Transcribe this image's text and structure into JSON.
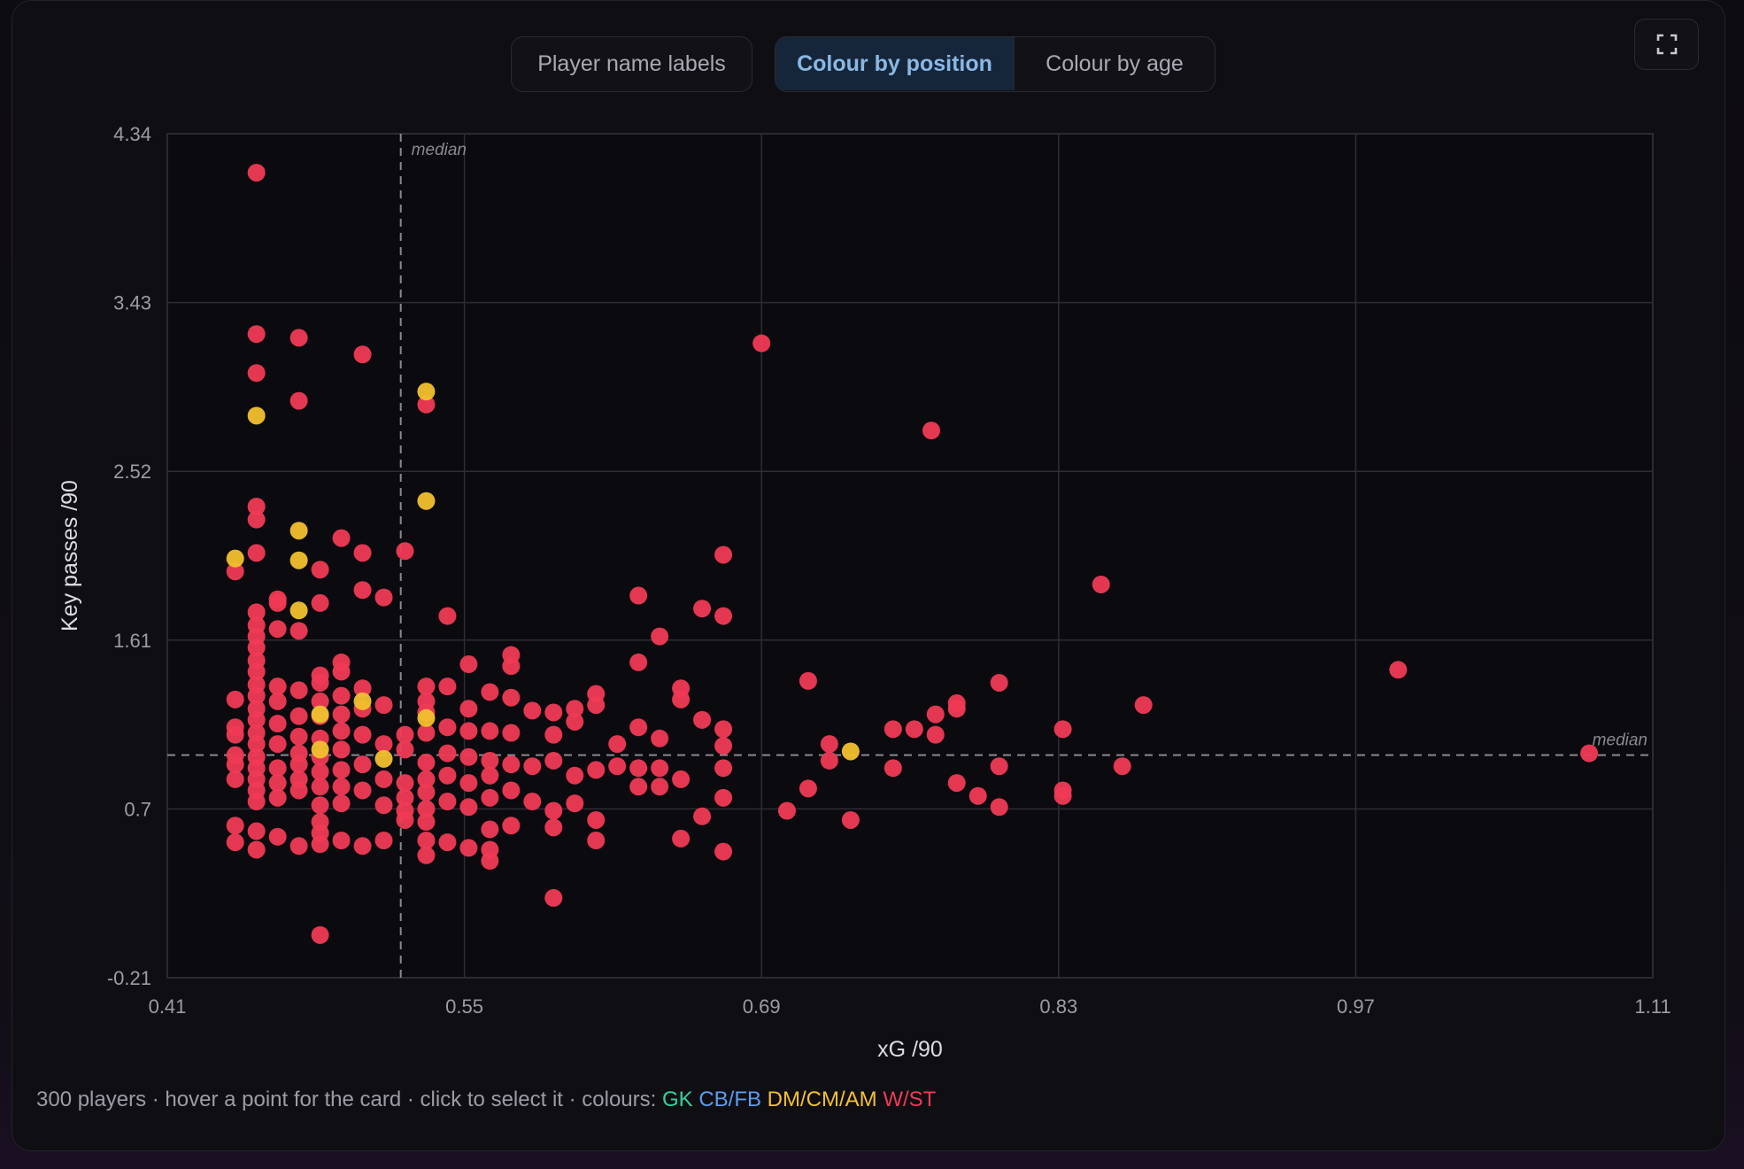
{
  "controls": {
    "labels_button": "Player name labels",
    "colour_by_position": "Colour by position",
    "colour_by_age": "Colour by age",
    "active": "colour_by_position",
    "expand_icon": "expand-icon"
  },
  "footer": {
    "text": "300 players · hover a point for the card · click to select it · colours: ",
    "legend": [
      {
        "label": "GK",
        "color": "#34d399"
      },
      {
        "label": "CB/FB",
        "color": "#5b9cf0"
      },
      {
        "label": "DM/CM/AM",
        "color": "#f2c12e"
      },
      {
        "label": "W/ST",
        "color": "#f03a55"
      }
    ]
  },
  "chart_data": {
    "type": "scatter",
    "xlabel": "xG /90",
    "ylabel": "Key passes /90",
    "xlim": [
      0.41,
      1.11
    ],
    "ylim": [
      -0.21,
      4.34
    ],
    "x_ticks": [
      "0.41",
      "0.55",
      "0.69",
      "0.83",
      "0.97",
      "1.11"
    ],
    "y_ticks": [
      "4.34",
      "3.43",
      "2.52",
      "1.61",
      "0.7",
      "-0.21"
    ],
    "grid": true,
    "median_lines": {
      "x": 0.52,
      "y": 0.99,
      "label": "median"
    },
    "series": [
      {
        "group": "W/ST",
        "color": "#f03a55",
        "points": [
          [
            0.452,
            4.13
          ],
          [
            0.452,
            3.26
          ],
          [
            0.472,
            3.24
          ],
          [
            0.502,
            3.15
          ],
          [
            0.452,
            3.05
          ],
          [
            0.472,
            2.9
          ],
          [
            0.532,
            2.88
          ],
          [
            0.69,
            3.21
          ],
          [
            0.77,
            2.74
          ],
          [
            0.85,
            1.91
          ],
          [
            0.99,
            1.45
          ],
          [
            1.08,
            1.0
          ],
          [
            0.452,
            2.33
          ],
          [
            0.452,
            2.26
          ],
          [
            0.452,
            2.08
          ],
          [
            0.442,
            1.98
          ],
          [
            0.492,
            2.16
          ],
          [
            0.502,
            2.08
          ],
          [
            0.482,
            1.99
          ],
          [
            0.502,
            1.88
          ],
          [
            0.512,
            1.84
          ],
          [
            0.482,
            1.81
          ],
          [
            0.462,
            1.83
          ],
          [
            0.462,
            1.81
          ],
          [
            0.522,
            2.09
          ],
          [
            0.542,
            1.74
          ],
          [
            0.672,
            2.07
          ],
          [
            0.632,
            1.85
          ],
          [
            0.662,
            1.78
          ],
          [
            0.672,
            1.74
          ],
          [
            0.642,
            1.63
          ],
          [
            0.632,
            1.49
          ],
          [
            0.452,
            1.76
          ],
          [
            0.452,
            1.69
          ],
          [
            0.452,
            1.63
          ],
          [
            0.452,
            1.57
          ],
          [
            0.452,
            1.5
          ],
          [
            0.452,
            1.44
          ],
          [
            0.452,
            1.37
          ],
          [
            0.452,
            1.31
          ],
          [
            0.452,
            1.24
          ],
          [
            0.452,
            1.18
          ],
          [
            0.452,
            1.11
          ],
          [
            0.452,
            1.05
          ],
          [
            0.452,
            0.98
          ],
          [
            0.452,
            0.92
          ],
          [
            0.452,
            0.86
          ],
          [
            0.452,
            0.8
          ],
          [
            0.452,
            0.74
          ],
          [
            0.452,
            0.58
          ],
          [
            0.452,
            0.48
          ],
          [
            0.442,
            1.29
          ],
          [
            0.442,
            1.14
          ],
          [
            0.442,
            1.1
          ],
          [
            0.442,
            0.99
          ],
          [
            0.442,
            0.94
          ],
          [
            0.442,
            0.86
          ],
          [
            0.442,
            0.61
          ],
          [
            0.442,
            0.52
          ],
          [
            0.462,
            1.67
          ],
          [
            0.462,
            1.36
          ],
          [
            0.462,
            1.28
          ],
          [
            0.462,
            1.16
          ],
          [
            0.462,
            1.05
          ],
          [
            0.462,
            0.92
          ],
          [
            0.462,
            0.84
          ],
          [
            0.462,
            0.76
          ],
          [
            0.462,
            0.55
          ],
          [
            0.472,
            1.66
          ],
          [
            0.472,
            1.34
          ],
          [
            0.472,
            1.2
          ],
          [
            0.472,
            1.09
          ],
          [
            0.472,
            1.0
          ],
          [
            0.472,
            0.94
          ],
          [
            0.472,
            0.86
          ],
          [
            0.472,
            0.8
          ],
          [
            0.472,
            0.5
          ],
          [
            0.482,
            1.42
          ],
          [
            0.482,
            1.38
          ],
          [
            0.482,
            1.28
          ],
          [
            0.482,
            1.2
          ],
          [
            0.482,
            1.08
          ],
          [
            0.482,
            0.98
          ],
          [
            0.482,
            0.9
          ],
          [
            0.482,
            0.82
          ],
          [
            0.482,
            0.72
          ],
          [
            0.482,
            0.63
          ],
          [
            0.482,
            0.57
          ],
          [
            0.482,
            0.51
          ],
          [
            0.482,
            0.02
          ],
          [
            0.492,
            1.49
          ],
          [
            0.492,
            1.44
          ],
          [
            0.492,
            1.31
          ],
          [
            0.492,
            1.21
          ],
          [
            0.492,
            1.12
          ],
          [
            0.492,
            1.02
          ],
          [
            0.492,
            0.91
          ],
          [
            0.492,
            0.82
          ],
          [
            0.492,
            0.73
          ],
          [
            0.492,
            0.53
          ],
          [
            0.502,
            1.35
          ],
          [
            0.502,
            1.24
          ],
          [
            0.502,
            1.1
          ],
          [
            0.502,
            0.94
          ],
          [
            0.502,
            0.8
          ],
          [
            0.502,
            0.5
          ],
          [
            0.512,
            1.26
          ],
          [
            0.512,
            1.05
          ],
          [
            0.512,
            0.86
          ],
          [
            0.512,
            0.72
          ],
          [
            0.512,
            0.53
          ],
          [
            0.522,
            1.1
          ],
          [
            0.522,
            1.02
          ],
          [
            0.522,
            0.84
          ],
          [
            0.522,
            0.76
          ],
          [
            0.522,
            0.69
          ],
          [
            0.522,
            0.64
          ],
          [
            0.532,
            1.36
          ],
          [
            0.532,
            1.28
          ],
          [
            0.532,
            1.22
          ],
          [
            0.532,
            1.11
          ],
          [
            0.532,
            0.95
          ],
          [
            0.532,
            0.86
          ],
          [
            0.532,
            0.79
          ],
          [
            0.532,
            0.7
          ],
          [
            0.532,
            0.63
          ],
          [
            0.532,
            0.53
          ],
          [
            0.532,
            0.45
          ],
          [
            0.542,
            1.36
          ],
          [
            0.542,
            1.14
          ],
          [
            0.542,
            1.0
          ],
          [
            0.542,
            0.88
          ],
          [
            0.542,
            0.74
          ],
          [
            0.542,
            0.52
          ],
          [
            0.552,
            1.48
          ],
          [
            0.552,
            1.24
          ],
          [
            0.552,
            1.12
          ],
          [
            0.552,
            0.98
          ],
          [
            0.552,
            0.84
          ],
          [
            0.552,
            0.71
          ],
          [
            0.552,
            0.49
          ],
          [
            0.562,
            1.33
          ],
          [
            0.562,
            1.12
          ],
          [
            0.562,
            0.96
          ],
          [
            0.562,
            0.88
          ],
          [
            0.562,
            0.76
          ],
          [
            0.562,
            0.59
          ],
          [
            0.562,
            0.48
          ],
          [
            0.562,
            0.42
          ],
          [
            0.572,
            1.53
          ],
          [
            0.572,
            1.47
          ],
          [
            0.572,
            1.3
          ],
          [
            0.572,
            1.11
          ],
          [
            0.572,
            0.94
          ],
          [
            0.572,
            0.8
          ],
          [
            0.572,
            0.61
          ],
          [
            0.582,
            1.23
          ],
          [
            0.582,
            0.93
          ],
          [
            0.582,
            0.74
          ],
          [
            0.592,
            1.22
          ],
          [
            0.592,
            1.1
          ],
          [
            0.592,
            0.96
          ],
          [
            0.592,
            0.69
          ],
          [
            0.592,
            0.6
          ],
          [
            0.592,
            0.22
          ],
          [
            0.602,
            1.24
          ],
          [
            0.602,
            1.17
          ],
          [
            0.602,
            0.88
          ],
          [
            0.602,
            0.73
          ],
          [
            0.612,
            1.32
          ],
          [
            0.612,
            1.26
          ],
          [
            0.612,
            0.91
          ],
          [
            0.612,
            0.64
          ],
          [
            0.612,
            0.53
          ],
          [
            0.622,
            1.05
          ],
          [
            0.622,
            0.93
          ],
          [
            0.632,
            1.14
          ],
          [
            0.632,
            0.92
          ],
          [
            0.632,
            0.82
          ],
          [
            0.642,
            1.08
          ],
          [
            0.642,
            0.92
          ],
          [
            0.642,
            0.82
          ],
          [
            0.652,
            1.35
          ],
          [
            0.652,
            1.29
          ],
          [
            0.652,
            0.86
          ],
          [
            0.652,
            0.54
          ],
          [
            0.662,
            1.18
          ],
          [
            0.662,
            0.66
          ],
          [
            0.672,
            1.13
          ],
          [
            0.672,
            1.04
          ],
          [
            0.672,
            0.92
          ],
          [
            0.672,
            0.76
          ],
          [
            0.672,
            0.47
          ],
          [
            0.702,
            0.69
          ],
          [
            0.712,
            1.39
          ],
          [
            0.712,
            0.81
          ],
          [
            0.722,
            1.05
          ],
          [
            0.722,
            0.96
          ],
          [
            0.732,
            0.64
          ],
          [
            0.752,
            1.13
          ],
          [
            0.752,
            0.92
          ],
          [
            0.762,
            1.13
          ],
          [
            0.772,
            1.21
          ],
          [
            0.772,
            1.1
          ],
          [
            0.782,
            1.24
          ],
          [
            0.782,
            1.27
          ],
          [
            0.782,
            0.84
          ],
          [
            0.792,
            0.77
          ],
          [
            0.802,
            0.93
          ],
          [
            0.802,
            0.71
          ],
          [
            0.802,
            1.38
          ],
          [
            0.832,
            1.13
          ],
          [
            0.832,
            0.8
          ],
          [
            0.832,
            0.77
          ],
          [
            0.86,
            0.93
          ],
          [
            0.87,
            1.26
          ]
        ]
      },
      {
        "group": "DM/CM/AM",
        "color": "#f2c12e",
        "points": [
          [
            0.532,
            2.95
          ],
          [
            0.452,
            2.82
          ],
          [
            0.532,
            2.36
          ],
          [
            0.472,
            2.2
          ],
          [
            0.442,
            2.05
          ],
          [
            0.472,
            2.04
          ],
          [
            0.472,
            1.77
          ],
          [
            0.482,
            1.21
          ],
          [
            0.502,
            1.28
          ],
          [
            0.482,
            1.02
          ],
          [
            0.512,
            0.97
          ],
          [
            0.532,
            1.19
          ],
          [
            0.732,
            1.01
          ]
        ]
      }
    ]
  }
}
